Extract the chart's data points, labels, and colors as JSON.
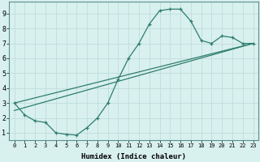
{
  "line1_x": [
    0,
    1,
    2,
    3,
    4,
    5,
    6,
    7,
    8,
    9,
    10,
    11,
    12,
    13,
    14,
    15,
    16,
    17,
    18,
    19,
    20,
    21,
    22,
    23
  ],
  "line1_y": [
    3.0,
    2.2,
    1.8,
    1.7,
    1.0,
    0.9,
    0.85,
    1.35,
    2.0,
    3.0,
    4.6,
    6.0,
    7.0,
    8.3,
    9.2,
    9.3,
    9.3,
    8.5,
    7.2,
    7.0,
    7.5,
    7.4,
    7.0,
    7.0
  ],
  "line2_x": [
    0,
    23
  ],
  "line2_y": [
    3.0,
    7.0
  ],
  "line3_x": [
    0,
    23
  ],
  "line3_y": [
    2.5,
    7.0
  ],
  "color": "#2e7d6e",
  "bg_color": "#d8f0ee",
  "grid_color": "#c0deda",
  "xlabel": "Humidex (Indice chaleur)",
  "xlim": [
    -0.5,
    23.5
  ],
  "ylim": [
    0.5,
    9.8
  ],
  "xticks": [
    0,
    1,
    2,
    3,
    4,
    5,
    6,
    7,
    8,
    9,
    10,
    11,
    12,
    13,
    14,
    15,
    16,
    17,
    18,
    19,
    20,
    21,
    22,
    23
  ],
  "yticks": [
    1,
    2,
    3,
    4,
    5,
    6,
    7,
    8,
    9
  ]
}
